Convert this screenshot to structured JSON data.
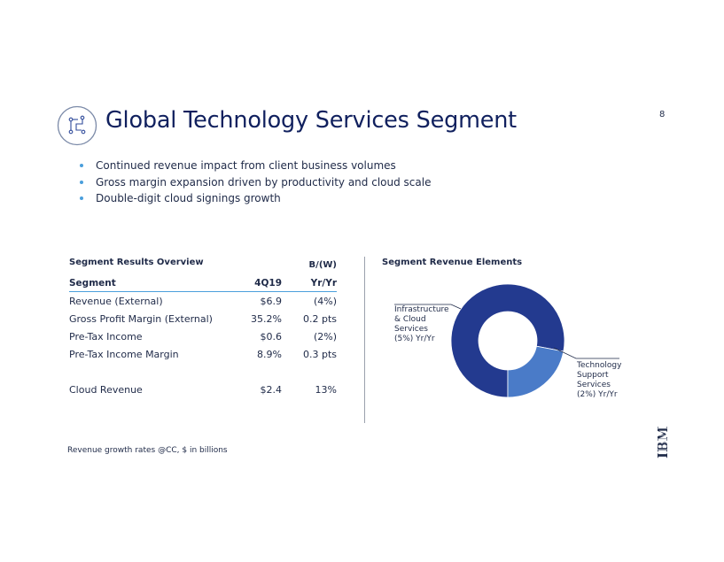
{
  "page_number": "8",
  "title": "Global Technology Services Segment",
  "icons": {
    "title_icon": "circuit-nodes-icon",
    "logo": "ibm-logo-icon"
  },
  "bullets": [
    "Continued revenue impact from client business volumes",
    "Gross margin expansion driven by productivity and cloud scale",
    "Double-digit cloud signings growth"
  ],
  "table": {
    "caption": "Segment Results Overview",
    "bw_header": "B/(W)",
    "headers": [
      "Segment",
      "4Q19",
      "Yr/Yr"
    ],
    "rows": [
      {
        "segment": "Revenue (External)",
        "q": "$6.9",
        "yy": "(4%)"
      },
      {
        "segment": "Gross Profit Margin (External)",
        "q": "35.2%",
        "yy": "0.2 pts"
      },
      {
        "segment": "Pre-Tax Income",
        "q": "$0.6",
        "yy": "(2%)"
      },
      {
        "segment": "Pre-Tax Income Margin",
        "q": "8.9%",
        "yy": "0.3 pts"
      },
      {
        "segment": "Cloud Revenue",
        "q": "$2.4",
        "yy": "13%"
      }
    ]
  },
  "chart": {
    "caption": "Segment Revenue Elements",
    "colors": {
      "infrastructure": "#233a8f",
      "technology_support": "#4a7bc8",
      "leader": "#1f2a48"
    },
    "slices": [
      {
        "label": "Infrastructure\n& Cloud\nServices\n(5%) Yr/Yr",
        "share": 0.78
      },
      {
        "label": "Technology\nSupport\nServices\n(2%) Yr/Yr",
        "share": 0.22
      }
    ]
  },
  "footnote": "Revenue growth rates @CC, $ in billions",
  "logo_text": "IBM"
}
